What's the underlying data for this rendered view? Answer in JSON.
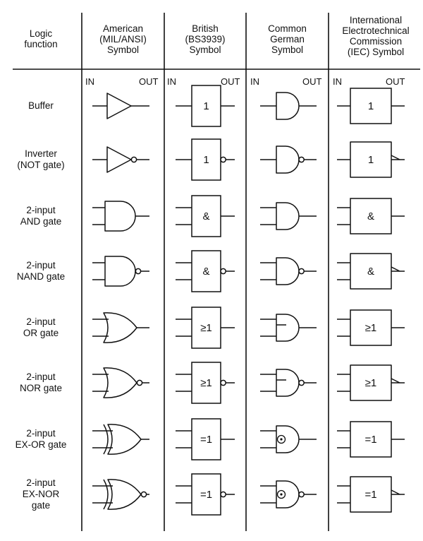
{
  "headers": {
    "function": [
      "Logic",
      "function"
    ],
    "american": [
      "American",
      "(MIL/ANSI)",
      "Symbol"
    ],
    "british": [
      "British",
      "(BS3939)",
      "Symbol"
    ],
    "german": [
      "Common",
      "German",
      "Symbol"
    ],
    "iec": [
      "International",
      "Electrotechnical",
      "Commission",
      "(IEC) Symbol"
    ]
  },
  "io": {
    "in": "IN",
    "out": "OUT"
  },
  "rows": [
    {
      "label": [
        "Buffer"
      ],
      "gate": "buffer",
      "british_text": "1",
      "iec_text": "1",
      "inverted": false
    },
    {
      "label": [
        "Inverter",
        "(NOT gate)"
      ],
      "gate": "buffer",
      "british_text": "1",
      "iec_text": "1",
      "inverted": true
    },
    {
      "label": [
        "2-input",
        "AND gate"
      ],
      "gate": "and",
      "british_text": "&",
      "iec_text": "&",
      "inverted": false
    },
    {
      "label": [
        "2-input",
        "NAND gate"
      ],
      "gate": "and",
      "british_text": "&",
      "iec_text": "&",
      "inverted": true
    },
    {
      "label": [
        "2-input",
        "OR gate"
      ],
      "gate": "or",
      "british_text": "≥1",
      "iec_text": "≥1",
      "inverted": false
    },
    {
      "label": [
        "2-input",
        "NOR gate"
      ],
      "gate": "or",
      "british_text": "≥1",
      "iec_text": "≥1",
      "inverted": true
    },
    {
      "label": [
        "2-input",
        "EX-OR gate"
      ],
      "gate": "xor",
      "british_text": "=1",
      "iec_text": "=1",
      "inverted": false
    },
    {
      "label": [
        "2-input",
        "EX-NOR",
        "gate"
      ],
      "gate": "xor",
      "british_text": "=1",
      "iec_text": "=1",
      "inverted": true
    }
  ]
}
